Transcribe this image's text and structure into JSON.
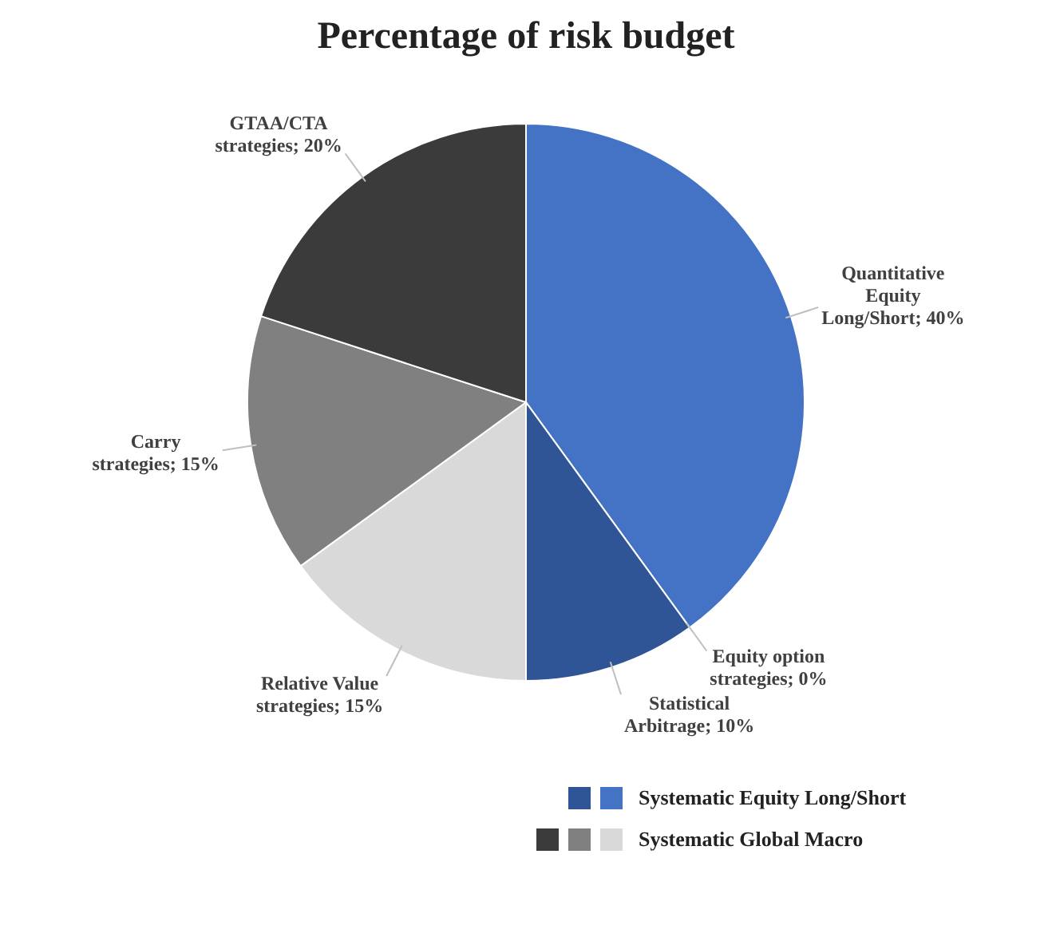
{
  "chart_data": {
    "type": "pie",
    "title": "Percentage of risk budget",
    "categories": [
      "Quantitative Equity Long/Short",
      "Equity option strategies",
      "Statistical Arbitrage",
      "Relative Value strategies",
      "Carry strategies",
      "GTAA/CTA strategies"
    ],
    "values": [
      40,
      0,
      10,
      15,
      15,
      20
    ],
    "colors": [
      "#4472c4",
      "#2e75b6",
      "#2f5597",
      "#d9d9d9",
      "#808080",
      "#3b3b3b"
    ],
    "value_labels": [
      "40%",
      "0%",
      "10%",
      "15%",
      "15%",
      "20%"
    ],
    "annotations": [
      "Systematic Equity Long/Short",
      "Systematic Global Macro"
    ]
  }
}
